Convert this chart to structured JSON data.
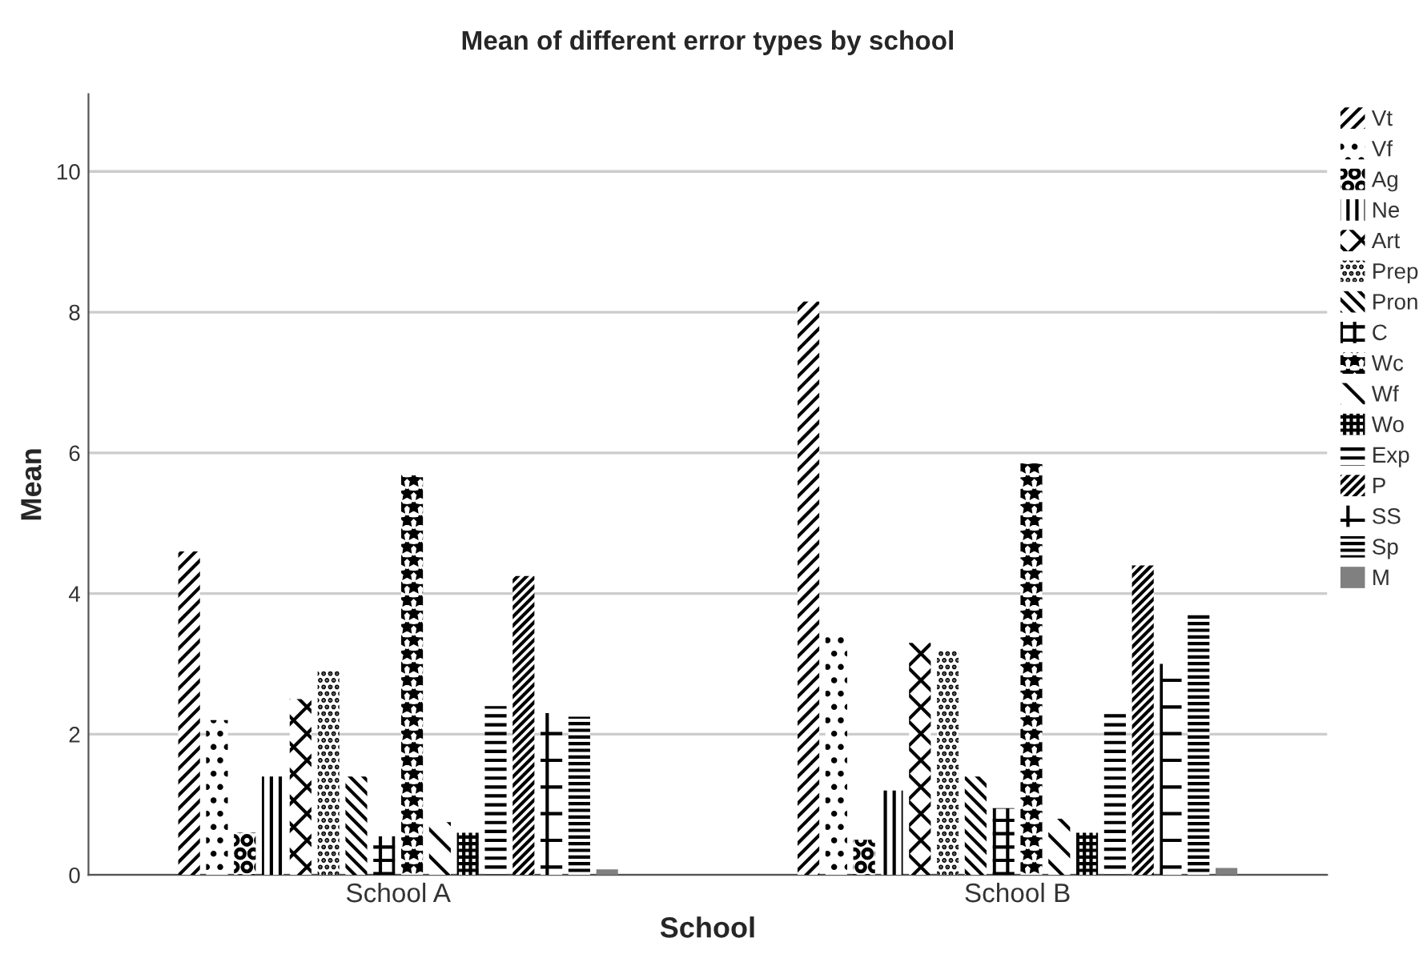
{
  "chart_data": {
    "type": "bar",
    "title": "Mean of different error types by school",
    "xlabel": "School",
    "ylabel": "Mean",
    "categories": [
      "School A",
      "School B"
    ],
    "series": [
      {
        "name": "Vt",
        "color": "#000000",
        "values": [
          4.6,
          8.15
        ]
      },
      {
        "name": "Vf",
        "color": "#000000",
        "values": [
          2.2,
          3.45
        ]
      },
      {
        "name": "Ag",
        "color": "#000000",
        "values": [
          0.6,
          0.5
        ]
      },
      {
        "name": "Ne",
        "color": "#000000",
        "values": [
          1.4,
          1.2
        ]
      },
      {
        "name": "Art",
        "color": "#000000",
        "values": [
          2.5,
          3.3
        ]
      },
      {
        "name": "Prep",
        "color": "#000000",
        "values": [
          2.9,
          3.2
        ]
      },
      {
        "name": "Pron",
        "color": "#000000",
        "values": [
          1.4,
          1.4
        ]
      },
      {
        "name": "C",
        "color": "#000000",
        "values": [
          0.55,
          0.95
        ]
      },
      {
        "name": "Wc",
        "color": "#000000",
        "values": [
          5.7,
          5.85
        ]
      },
      {
        "name": "Wf",
        "color": "#000000",
        "values": [
          0.75,
          0.8
        ]
      },
      {
        "name": "Wo",
        "color": "#000000",
        "values": [
          0.6,
          0.6
        ]
      },
      {
        "name": "Exp",
        "color": "#000000",
        "values": [
          2.4,
          2.3
        ]
      },
      {
        "name": "P",
        "color": "#000000",
        "values": [
          4.25,
          4.4
        ]
      },
      {
        "name": "SS",
        "color": "#000000",
        "values": [
          2.3,
          3.0
        ]
      },
      {
        "name": "Sp",
        "color": "#000000",
        "values": [
          2.25,
          3.7
        ]
      },
      {
        "name": "M",
        "color": "#808080",
        "values": [
          0.08,
          0.1
        ]
      }
    ],
    "ylim": [
      0,
      11.1
    ],
    "yticks": [
      0,
      2,
      4,
      6,
      8,
      10
    ],
    "grid": "y",
    "legend": "right"
  }
}
